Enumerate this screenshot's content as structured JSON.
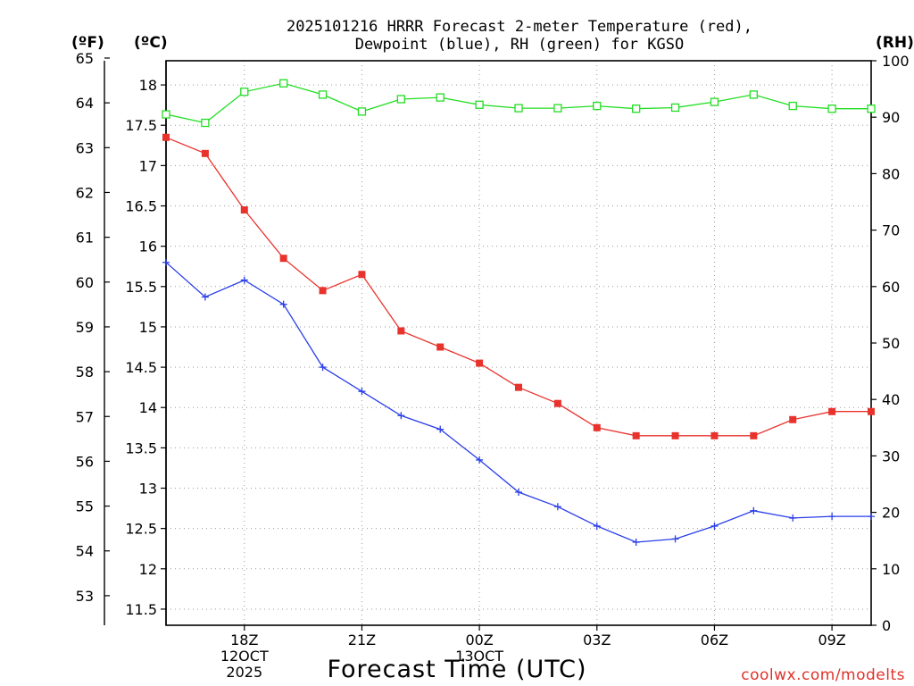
{
  "chart_data": {
    "type": "line",
    "title_lines": [
      "2025101216 HRRR Forecast 2-meter Temperature (red),",
      "Dewpoint (blue), RH (green) for KGSO"
    ],
    "unit_labels": {
      "fahrenheit": "(ºF)",
      "celsius": "(ºC)",
      "rh": "(RH)"
    },
    "xlabel": "Forecast Time (UTC)",
    "credit": "coolwx.com/modelts",
    "hours": [
      16,
      17,
      18,
      19,
      20,
      21,
      22,
      23,
      24,
      25,
      26,
      27,
      28,
      29,
      30,
      31,
      32,
      33,
      34
    ],
    "x_ticks": [
      {
        "hour": 18,
        "lines": [
          "18Z",
          "12OCT",
          "2025"
        ]
      },
      {
        "hour": 21,
        "lines": [
          "21Z"
        ]
      },
      {
        "hour": 24,
        "lines": [
          "00Z",
          "13OCT"
        ]
      },
      {
        "hour": 27,
        "lines": [
          "03Z"
        ]
      },
      {
        "hour": 30,
        "lines": [
          "06Z"
        ]
      },
      {
        "hour": 33,
        "lines": [
          "09Z"
        ]
      }
    ],
    "celsius_axis": {
      "range": [
        11.3,
        18.3
      ],
      "ticks": [
        11.5,
        12,
        12.5,
        13,
        13.5,
        14,
        14.5,
        15,
        15.5,
        16,
        16.5,
        17,
        17.5,
        18
      ],
      "tick_labels": [
        "11.5",
        "12",
        "12.5",
        "13",
        "13.5",
        "14",
        "14.5",
        "15",
        "15.5",
        "16",
        "16.5",
        "17",
        "17.5",
        "18"
      ]
    },
    "fahrenheit_axis": {
      "ticks": [
        53,
        54,
        55,
        56,
        57,
        58,
        59,
        60,
        61,
        62,
        63,
        64,
        65
      ],
      "tick_labels": [
        "53",
        "54",
        "55",
        "56",
        "57",
        "58",
        "59",
        "60",
        "61",
        "62",
        "63",
        "64",
        "65"
      ]
    },
    "rh_axis": {
      "range": [
        0,
        100
      ],
      "ticks": [
        0,
        10,
        20,
        30,
        40,
        50,
        60,
        70,
        80,
        90,
        100
      ],
      "tick_labels": [
        "0",
        "10",
        "20",
        "30",
        "40",
        "50",
        "60",
        "70",
        "80",
        "90",
        "100"
      ]
    },
    "series": [
      {
        "name": "2-meter Temperature",
        "color": "#e8322c",
        "marker": "filled-square",
        "axis": "celsius",
        "values": [
          17.35,
          17.15,
          16.45,
          15.85,
          15.45,
          15.65,
          14.95,
          14.75,
          14.55,
          14.25,
          14.05,
          13.75,
          13.65,
          13.65,
          13.65,
          13.65,
          13.85,
          13.95,
          13.95
        ]
      },
      {
        "name": "Dewpoint",
        "color": "#2a3ee8",
        "marker": "plus",
        "axis": "celsius",
        "values": [
          15.8,
          15.37,
          15.58,
          15.28,
          14.5,
          14.2,
          13.9,
          13.73,
          13.35,
          12.95,
          12.77,
          12.53,
          12.33,
          12.37,
          12.53,
          12.72,
          12.63,
          12.65,
          12.65
        ]
      },
      {
        "name": "RH",
        "color": "#22dd22",
        "marker": "open-square",
        "axis": "rh",
        "values": [
          90.5,
          89.0,
          94.5,
          96.0,
          94.0,
          91.0,
          93.2,
          93.5,
          92.2,
          91.6,
          91.6,
          92.0,
          91.5,
          91.7,
          92.7,
          94.0,
          92.0,
          91.5,
          91.5
        ]
      }
    ]
  }
}
